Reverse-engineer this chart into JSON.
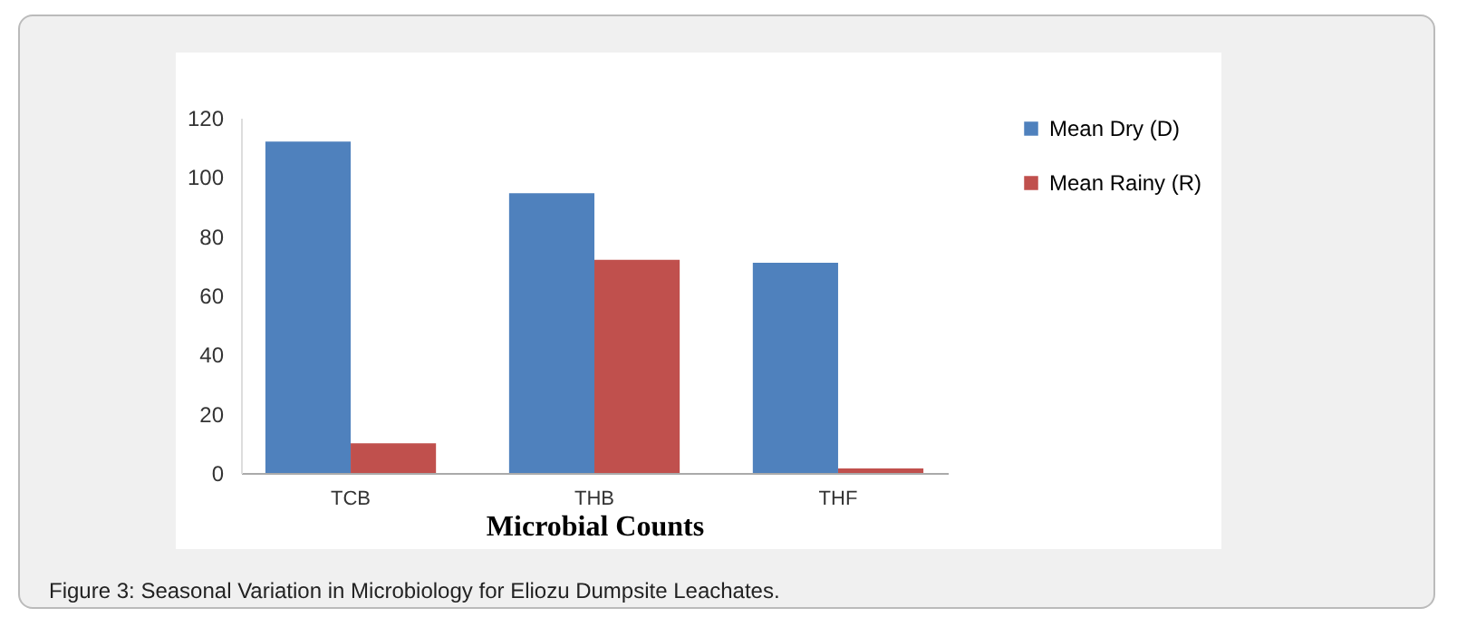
{
  "chart_data": {
    "type": "bar",
    "xlabel": "Microbial Counts",
    "categories": [
      "TCB",
      "THB",
      "THF"
    ],
    "series": [
      {
        "name": "Mean Dry (D)",
        "color": "#4f81bd",
        "values": [
          112,
          94.5,
          71
        ]
      },
      {
        "name": "Mean Rainy (R)",
        "color": "#c0504d",
        "values": [
          10,
          72,
          1.5
        ]
      }
    ],
    "ylim": [
      0,
      120
    ],
    "yticks": [
      0,
      20,
      40,
      60,
      80,
      100,
      120
    ],
    "grid": false,
    "legend": "right",
    "annotations": [
      "Figure 3: Seasonal Variation in Microbiology for Eliozu Dumpsite Leachates."
    ]
  }
}
